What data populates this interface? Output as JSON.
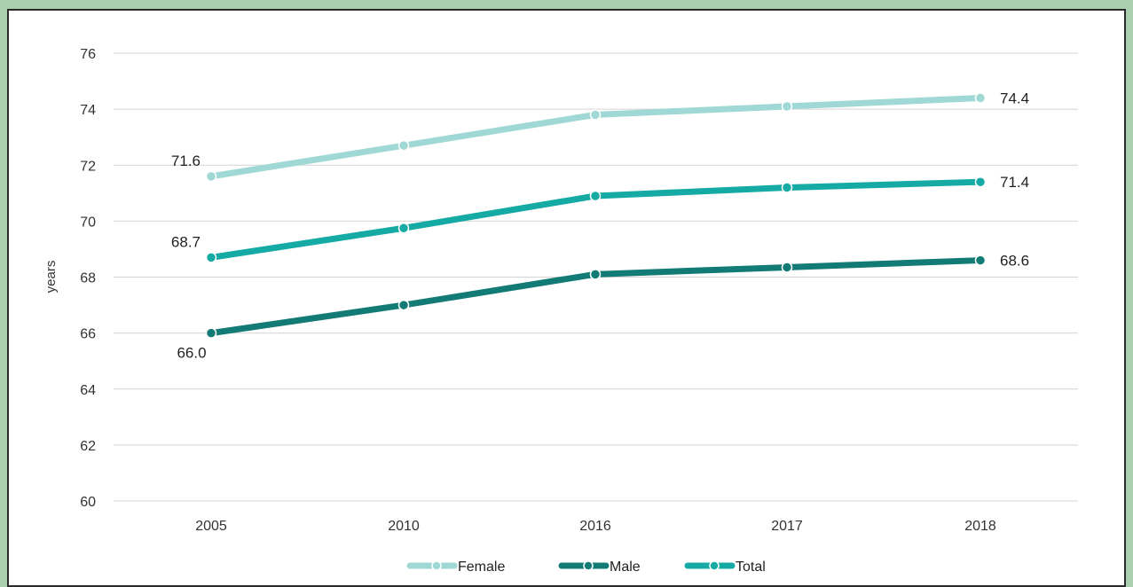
{
  "chart_data": {
    "type": "line",
    "title": "",
    "xlabel": "",
    "ylabel": "years",
    "categories": [
      "2005",
      "2010",
      "2016",
      "2017",
      "2018"
    ],
    "ylim": [
      60,
      76
    ],
    "yticks": [
      60,
      62,
      64,
      66,
      68,
      70,
      72,
      74,
      76
    ],
    "grid": true,
    "legend_position": "bottom",
    "series": [
      {
        "name": "Female",
        "color": "#9fd8d5",
        "values": [
          71.6,
          72.7,
          73.8,
          74.1,
          74.4
        ]
      },
      {
        "name": "Male",
        "color": "#137b76",
        "values": [
          66.0,
          67.0,
          68.1,
          68.35,
          68.6
        ]
      },
      {
        "name": "Total",
        "color": "#15aaa4",
        "values": [
          68.7,
          69.75,
          70.9,
          71.2,
          71.4
        ]
      }
    ],
    "data_labels": [
      {
        "series": "Female",
        "index": 0,
        "text": "71.6"
      },
      {
        "series": "Female",
        "index": 4,
        "text": "74.4"
      },
      {
        "series": "Total",
        "index": 0,
        "text": "68.7"
      },
      {
        "series": "Total",
        "index": 4,
        "text": "71.4"
      },
      {
        "series": "Male",
        "index": 0,
        "text": "66.0"
      },
      {
        "series": "Male",
        "index": 4,
        "text": "68.6"
      }
    ]
  }
}
